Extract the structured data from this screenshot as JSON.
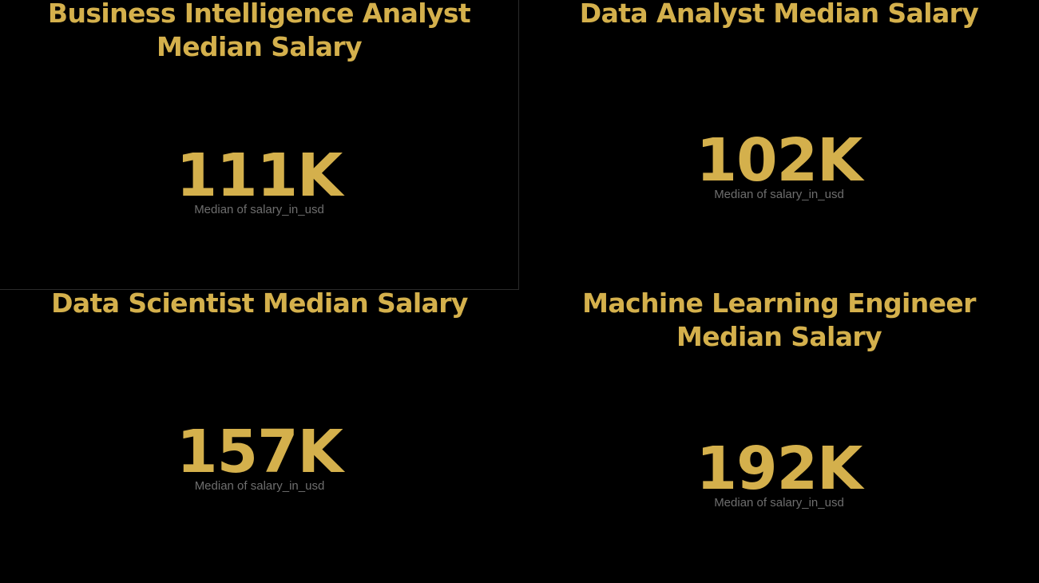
{
  "cards": [
    {
      "title": "Business Intelligence Analyst Median Salary",
      "value": "111K",
      "caption": "Median of salary_in_usd"
    },
    {
      "title": "Data Analyst Median Salary",
      "value": "102K",
      "caption": "Median of salary_in_usd"
    },
    {
      "title": "Data Scientist Median Salary",
      "value": "157K",
      "caption": "Median of salary_in_usd"
    },
    {
      "title": "Machine Learning Engineer Median Salary",
      "value": "192K",
      "caption": "Median of salary_in_usd"
    }
  ],
  "colors": {
    "background": "#000000",
    "accent": "#D4B04C",
    "caption": "#6e6e6e"
  }
}
